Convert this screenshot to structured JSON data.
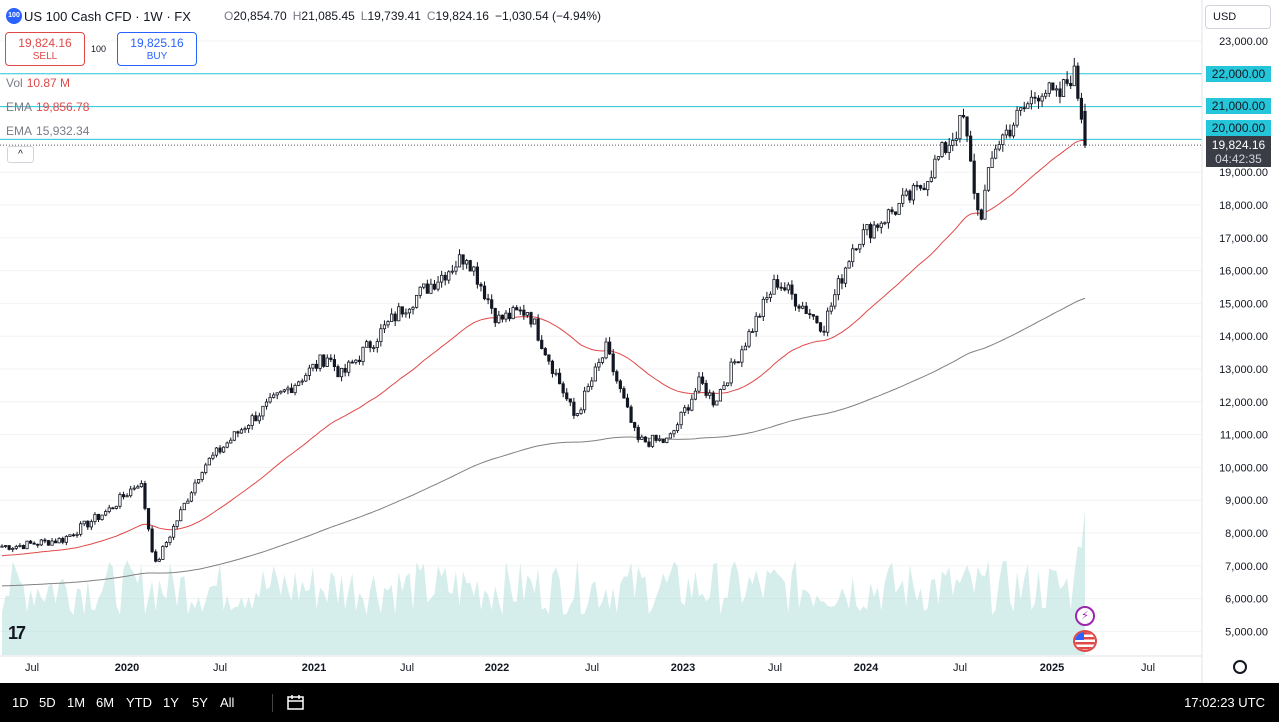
{
  "legend": {
    "logo_text": "100",
    "title": "US 100 Cash CFD · 1W · FX",
    "ohlc": {
      "o_label": "O",
      "o": "20,854.70",
      "h_label": "H",
      "h": "21,085.45",
      "l_label": "L",
      "l": "19,739.41",
      "c_label": "C",
      "c": "19,824.16",
      "change": "−1,030.54 (−4.94%)"
    },
    "vol_label": "Vol",
    "vol_value": "10.87 M",
    "ema1_label": "EMA",
    "ema1_value": "19,856.78",
    "ema2_label": "EMA",
    "ema2_value": "15,932.34"
  },
  "trade": {
    "sell_price": "19,824.16",
    "sell_label": "SELL",
    "spread": "100",
    "buy_price": "19,825.16",
    "buy_label": "BUY"
  },
  "collapse_glyph": "^",
  "currency": "USD",
  "price_axis": {
    "ticks": [
      "23,000.00",
      "22,000.00",
      "21,000.00",
      "20,000.00",
      "19,000.00",
      "18,000.00",
      "17,000.00",
      "16,000.00",
      "15,000.00",
      "14,000.00",
      "13,000.00",
      "12,000.00",
      "11,000.00",
      "10,000.00",
      "9,000.00",
      "8,000.00",
      "7,000.00",
      "6,000.00",
      "5,000.00"
    ],
    "hline_labels": [
      "22,000.00",
      "21,000.00",
      "20,000.00"
    ],
    "current_price": "19,824.16",
    "countdown": "04:42:35"
  },
  "time_axis": [
    "Jul",
    "2020",
    "Jul",
    "2021",
    "Jul",
    "2022",
    "Jul",
    "2023",
    "Jul",
    "2024",
    "Jul",
    "2025",
    "Jul"
  ],
  "ranges": [
    "1D",
    "5D",
    "1M",
    "6M",
    "YTD",
    "1Y",
    "5Y",
    "All"
  ],
  "clock": "17:02:23 UTC",
  "tv_logo": "17",
  "flash_glyph": "⚡",
  "colors": {
    "up": "#131722",
    "down": "#131722",
    "ema_fast": "#e04848",
    "ema_slow": "#808080",
    "hline": "#26c6da",
    "vol_up": "#b2dfdb",
    "vol_down": "#f7c6c6"
  },
  "chart_data": {
    "type": "candlestick",
    "timeframe": "1W",
    "ylim": [
      4500,
      23500
    ],
    "anchors": [
      [
        "2019-06",
        7600
      ],
      [
        "2019-09",
        7800
      ],
      [
        "2019-12",
        8700
      ],
      [
        "2020-02",
        9600
      ],
      [
        "2020-03",
        7000
      ],
      [
        "2020-06",
        10000
      ],
      [
        "2020-09",
        11400
      ],
      [
        "2020-11",
        12200
      ],
      [
        "2021-02",
        13400
      ],
      [
        "2021-03",
        12800
      ],
      [
        "2021-07",
        14900
      ],
      [
        "2021-11",
        16500
      ],
      [
        "2022-01",
        14500
      ],
      [
        "2022-03",
        14800
      ],
      [
        "2022-06",
        11500
      ],
      [
        "2022-08",
        13600
      ],
      [
        "2022-10",
        10800
      ],
      [
        "2022-12",
        10800
      ],
      [
        "2023-02",
        12600
      ],
      [
        "2023-03",
        12000
      ],
      [
        "2023-07",
        15700
      ],
      [
        "2023-10",
        14300
      ],
      [
        "2023-12",
        16900
      ],
      [
        "2024-04",
        18400
      ],
      [
        "2024-07",
        20600
      ],
      [
        "2024-08",
        17500
      ],
      [
        "2024-09",
        19800
      ],
      [
        "2024-12",
        21600
      ],
      [
        "2025-01",
        21200
      ],
      [
        "2025-02",
        22100
      ],
      [
        "2025-03",
        19824
      ]
    ],
    "last_candle": {
      "open": 20854.7,
      "high": 21085.45,
      "low": 19739.41,
      "close": 19824.16
    },
    "ema_fast_last": 19856.78,
    "ema_slow_last": 15932.34,
    "hlines": [
      22000,
      21000,
      20000
    ],
    "volume_last": "10.87 M"
  }
}
